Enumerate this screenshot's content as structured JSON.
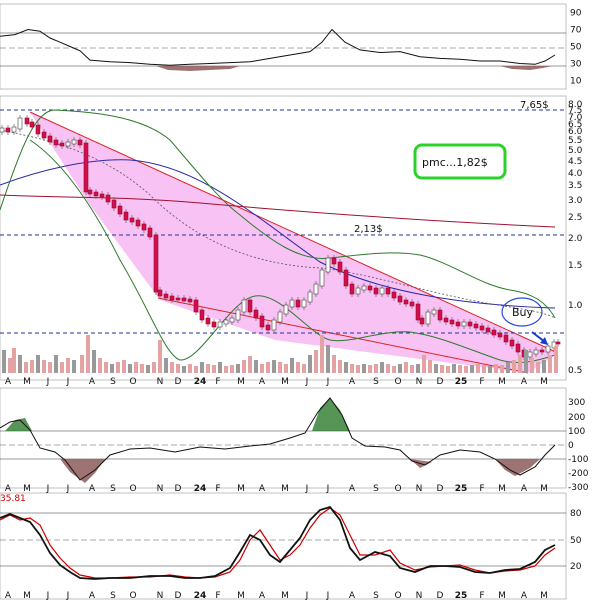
{
  "chart_data": {
    "type": "candlestick",
    "panels": {
      "rsi": {
        "right_ticks": [
          "90",
          "70",
          "50",
          "30",
          "10"
        ],
        "ref_lines": [
          70,
          50,
          30
        ],
        "series": [
          {
            "x": 0,
            "y": 62
          },
          {
            "x": 15,
            "y": 64
          },
          {
            "x": 28,
            "y": 70
          },
          {
            "x": 40,
            "y": 68
          },
          {
            "x": 50,
            "y": 60
          },
          {
            "x": 60,
            "y": 55
          },
          {
            "x": 70,
            "y": 50
          },
          {
            "x": 80,
            "y": 45
          },
          {
            "x": 90,
            "y": 34
          },
          {
            "x": 110,
            "y": 32
          },
          {
            "x": 130,
            "y": 31
          },
          {
            "x": 150,
            "y": 29
          },
          {
            "x": 170,
            "y": 28
          },
          {
            "x": 190,
            "y": 29
          },
          {
            "x": 210,
            "y": 30
          },
          {
            "x": 230,
            "y": 31
          },
          {
            "x": 250,
            "y": 32
          },
          {
            "x": 270,
            "y": 36
          },
          {
            "x": 290,
            "y": 40
          },
          {
            "x": 310,
            "y": 44
          },
          {
            "x": 322,
            "y": 55
          },
          {
            "x": 332,
            "y": 70
          },
          {
            "x": 345,
            "y": 55
          },
          {
            "x": 360,
            "y": 46
          },
          {
            "x": 380,
            "y": 43
          },
          {
            "x": 400,
            "y": 44
          },
          {
            "x": 420,
            "y": 38
          },
          {
            "x": 440,
            "y": 36
          },
          {
            "x": 460,
            "y": 35
          },
          {
            "x": 480,
            "y": 33
          },
          {
            "x": 500,
            "y": 33
          },
          {
            "x": 520,
            "y": 30
          },
          {
            "x": 535,
            "y": 29
          },
          {
            "x": 545,
            "y": 33
          },
          {
            "x": 555,
            "y": 40
          }
        ]
      },
      "price": {
        "right_ticks": [
          "8.0",
          "7.5",
          "7.0",
          "6.5",
          "6.0",
          "5.5",
          "5.0",
          "4.5",
          "4.0",
          "3.5",
          "3.0",
          "2.5",
          "2.0",
          "1.5",
          "1.0",
          "0.5"
        ],
        "levels": [
          {
            "label": "7,65$",
            "value": 7.65
          },
          {
            "label": "2,13$",
            "value": 2.13
          }
        ],
        "badges": [
          {
            "label": "pmc...1,82$"
          },
          {
            "label": "Buy"
          }
        ]
      },
      "cci": {
        "right_ticks": [
          "300",
          "200",
          "100",
          "0",
          "-100",
          "-200",
          "-300"
        ],
        "ref_lines": [
          100,
          0,
          -100
        ]
      },
      "stoch": {
        "corner_text": "35.81",
        "right_ticks": [
          "80",
          "50",
          "20"
        ],
        "ref_lines": [
          80,
          50,
          20
        ]
      }
    },
    "x_ticks": [
      "A",
      "M",
      "J",
      "J",
      "A",
      "S",
      "O",
      "N",
      "D",
      "24",
      "F",
      "M",
      "A",
      "M",
      "J",
      "J",
      "A",
      "S",
      "O",
      "N",
      "D",
      "25",
      "F",
      "M",
      "A",
      "M"
    ]
  }
}
